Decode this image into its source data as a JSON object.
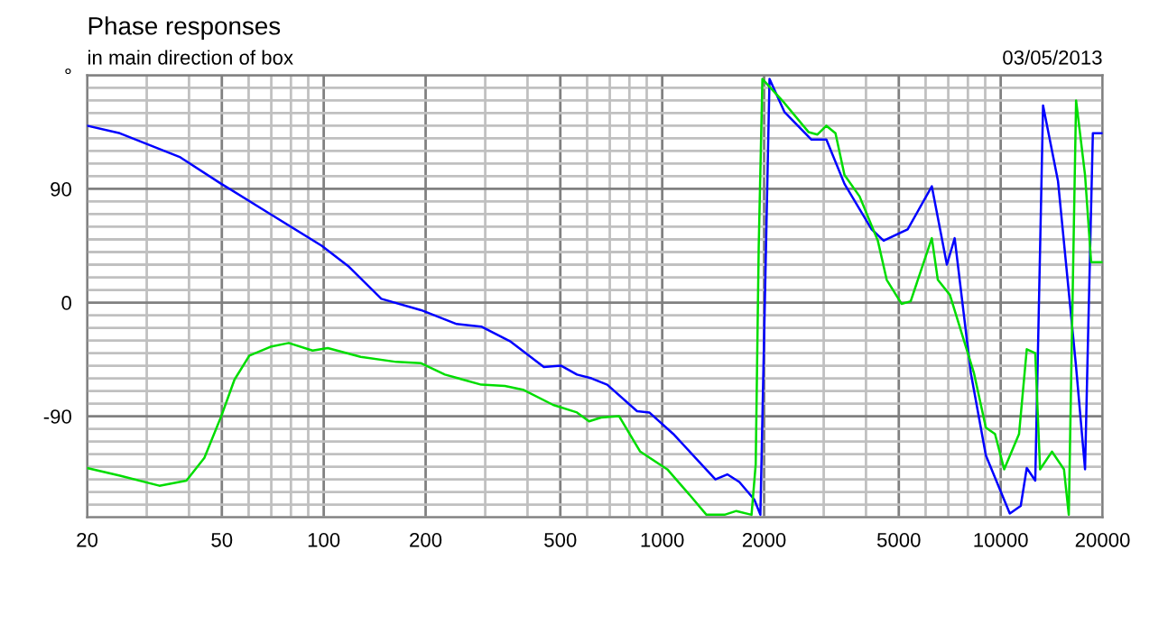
{
  "chart_data": {
    "type": "line",
    "title": "Phase responses",
    "subtitle": "in main direction of box",
    "annotations": [
      "03/05/2013"
    ],
    "log": "x",
    "grid": true,
    "line_style": "solid",
    "marker": "none",
    "xlim": [
      20,
      20000
    ],
    "xticks": [
      20,
      50,
      100,
      200,
      500,
      1000,
      2000,
      5000,
      10000,
      20000
    ],
    "ylim": [
      -170,
      180
    ],
    "yticks": [
      {
        "value": 180,
        "label": "°"
      },
      90,
      0,
      -90
    ],
    "series": [
      {
        "color": "#0000ff",
        "x": [
          20,
          25,
          37.7,
          49.8,
          69.6,
          98.6,
          118,
          148,
          194,
          247,
          292,
          357,
          447,
          503,
          560,
          618,
          688,
          843,
          916,
          1078,
          1436,
          1557,
          1690,
          1871,
          1950,
          2075,
          2296,
          2760,
          3055,
          3455,
          4157,
          4510,
          5310,
          6260,
          6935,
          7312,
          8165,
          9040,
          10640,
          11460,
          11940,
          12650,
          13340,
          14770,
          16700,
          17750,
          18100,
          18720,
          19900
        ],
        "values": [
          140,
          134,
          115,
          94,
          70,
          45,
          29,
          3,
          -6,
          -17,
          -19,
          -31,
          -51,
          -50,
          -57,
          -60,
          -65,
          -86,
          -87,
          -104,
          -140,
          -136,
          -142,
          -156,
          -168,
          177,
          151,
          129,
          129,
          94,
          58,
          49,
          58,
          92,
          30,
          51,
          -56,
          -121,
          -167,
          -161,
          -131,
          -141,
          156,
          96,
          -51,
          -132,
          -32,
          134,
          134
        ]
      },
      {
        "color": "#00dd00",
        "x": [
          20,
          25,
          32.7,
          39.3,
          44.4,
          49.8,
          54.5,
          60.3,
          69.6,
          78.8,
          92.7,
          102.8,
          128.6,
          164,
          194,
          228,
          292,
          343,
          388,
          476,
          560,
          608,
          660,
          746,
          861,
          1035,
          1194,
          1351,
          1528,
          1656,
          1836,
          1889,
          1928,
          1977,
          2296,
          2705,
          2875,
          3055,
          3250,
          3455,
          3830,
          4335,
          4605,
          5095,
          5420,
          6260,
          6520,
          7080,
          8340,
          9040,
          9620,
          10240,
          11330,
          11940,
          12650,
          13070,
          14170,
          15380,
          15890,
          16700,
          17750,
          18500,
          19900
        ],
        "values": [
          -131,
          -137,
          -145,
          -141,
          -123,
          -90,
          -61,
          -42,
          -35,
          -32,
          -38,
          -36,
          -43,
          -47,
          -48,
          -57,
          -65,
          -66,
          -69,
          -81,
          -87,
          -94,
          -91,
          -90,
          -118,
          -132,
          -151,
          -168,
          -168,
          -165,
          -168,
          -128,
          44,
          177,
          158,
          135,
          133,
          140,
          134,
          101,
          84,
          49,
          18,
          -1,
          1,
          51,
          18,
          6,
          -56,
          -99,
          -104,
          -132,
          -104,
          -37,
          -40,
          -132,
          -118,
          -132,
          -168,
          160,
          101,
          32,
          32
        ]
      }
    ]
  }
}
